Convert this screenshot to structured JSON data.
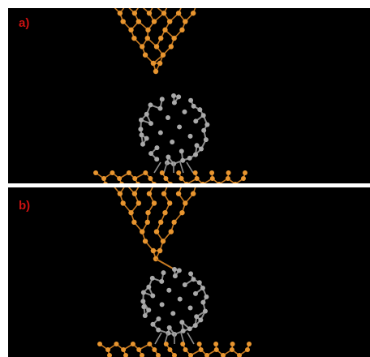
{
  "panels": [
    {
      "label": "a)",
      "state": "separated"
    },
    {
      "label": "b)",
      "state": "contact"
    }
  ],
  "colors": {
    "label": "#cc1111",
    "gold_atom": "#e8952f",
    "gold_bond": "#c77a22",
    "carbon_atom": "#a9a9a9",
    "carbon_bond": "#8e8e8e",
    "background": "#000000"
  }
}
